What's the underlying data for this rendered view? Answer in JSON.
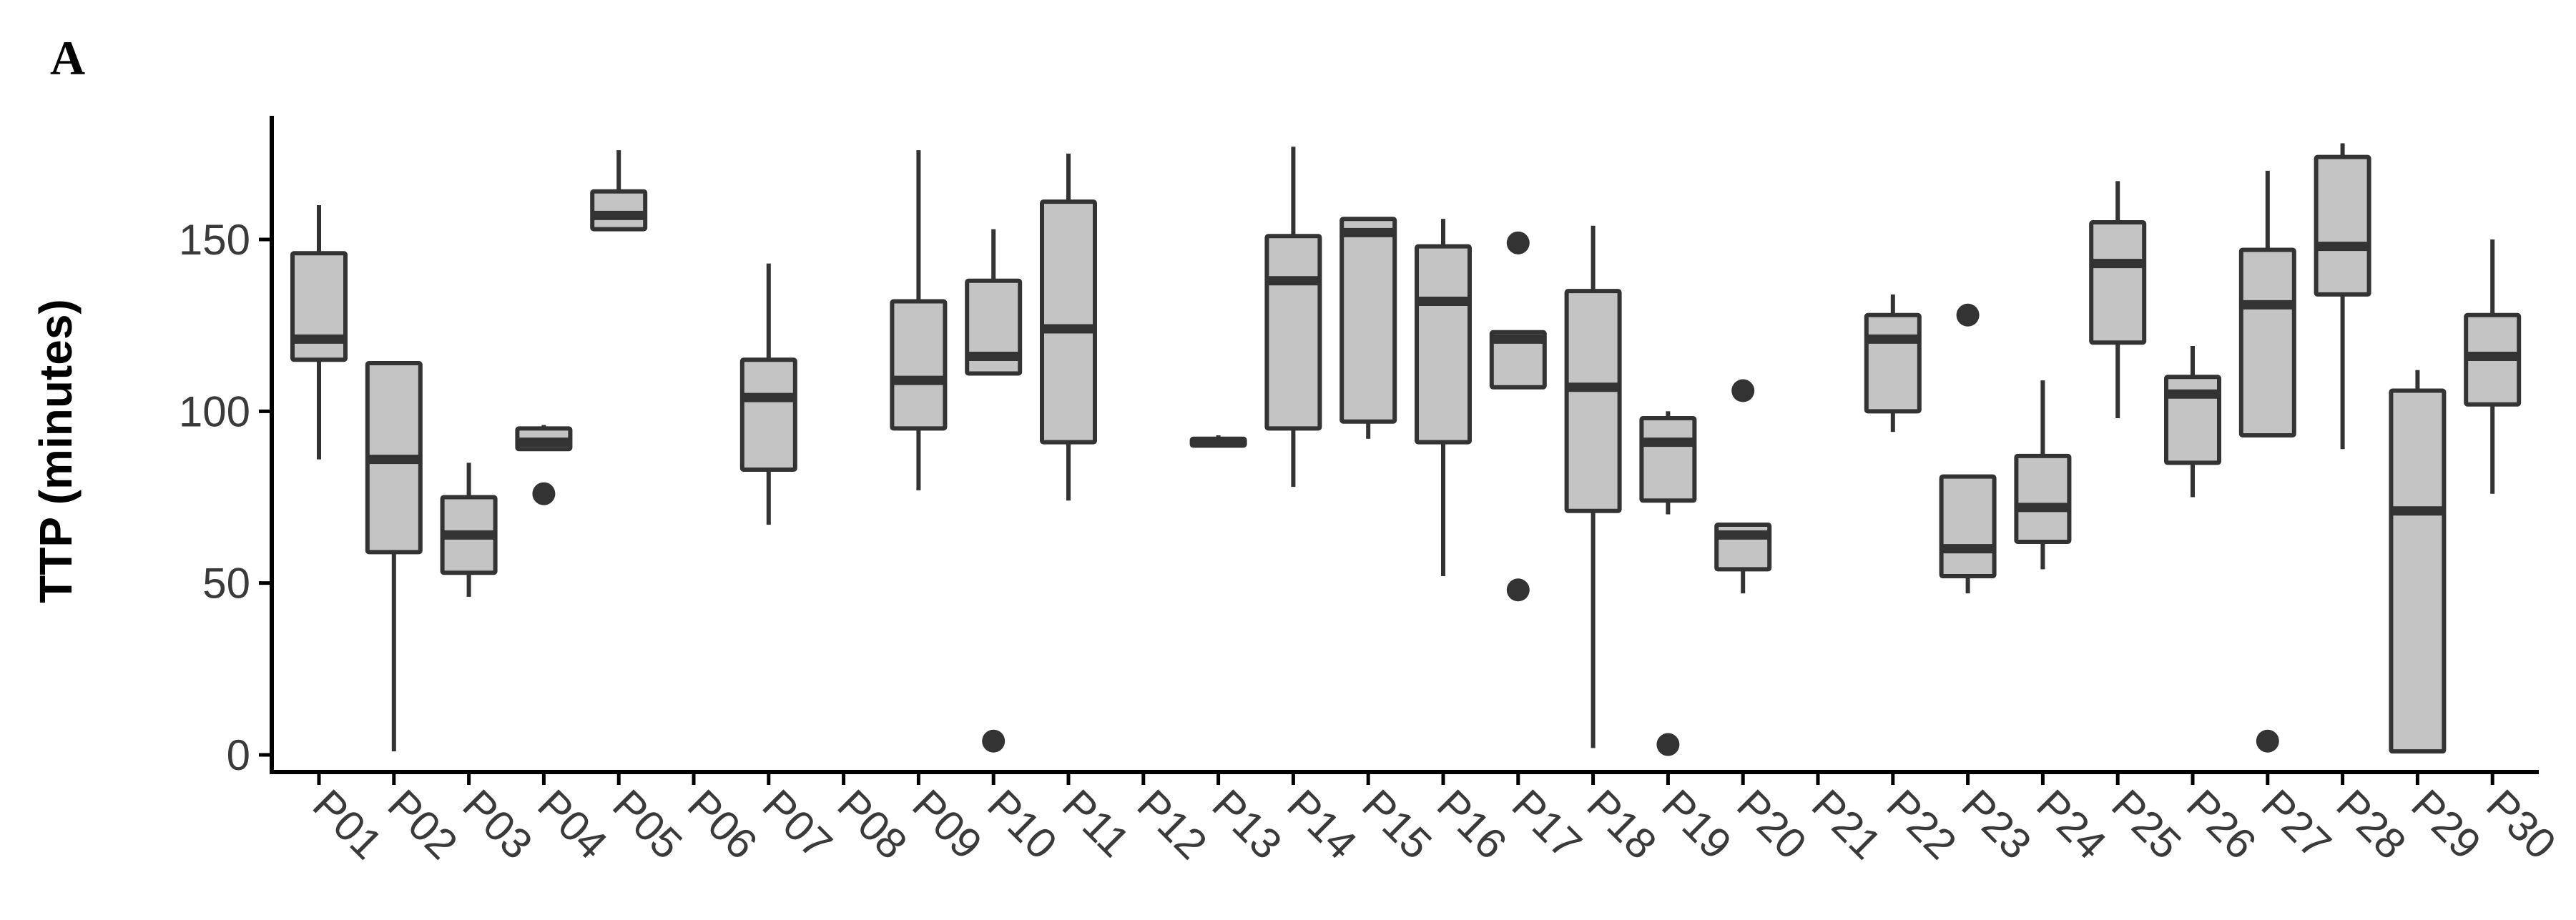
{
  "panel_label": "A",
  "chart_data": {
    "type": "box",
    "title": "",
    "xlabel": "",
    "ylabel": "TTP (minutes)",
    "ylim": [
      -5,
      186
    ],
    "yticks": [
      0,
      50,
      100,
      150
    ],
    "grid": false,
    "colors": {
      "box_fill": "#c4c4c4",
      "line": "#333333",
      "axis": "#000000"
    },
    "categories": [
      "P01",
      "P02",
      "P03",
      "P04",
      "P05",
      "P06",
      "P07",
      "P08",
      "P09",
      "P10",
      "P11",
      "P12",
      "P13",
      "P14",
      "P15",
      "P16",
      "P17",
      "P18",
      "P19",
      "P20",
      "P21",
      "P22",
      "P23",
      "P24",
      "P25",
      "P26",
      "P27",
      "P28",
      "P29",
      "P30"
    ],
    "boxes": [
      {
        "category": "P01",
        "whisker_low": 86,
        "q1": 115,
        "median": 121,
        "q3": 146,
        "whisker_high": 160,
        "outliers": []
      },
      {
        "category": "P02",
        "whisker_low": 1,
        "q1": 59,
        "median": 86,
        "q3": 114,
        "whisker_high": 114,
        "outliers": []
      },
      {
        "category": "P03",
        "whisker_low": 46,
        "q1": 53,
        "median": 64,
        "q3": 75,
        "whisker_high": 85,
        "outliers": []
      },
      {
        "category": "P04",
        "whisker_low": 89,
        "q1": 89,
        "median": 91,
        "q3": 95,
        "whisker_high": 96,
        "outliers": [
          76
        ]
      },
      {
        "category": "P05",
        "whisker_low": 153,
        "q1": 153,
        "median": 157,
        "q3": 164,
        "whisker_high": 176,
        "outliers": []
      },
      {
        "category": "P06",
        "whisker_low": null,
        "q1": null,
        "median": null,
        "q3": null,
        "whisker_high": null,
        "outliers": []
      },
      {
        "category": "P07",
        "whisker_low": 67,
        "q1": 83,
        "median": 104,
        "q3": 115,
        "whisker_high": 143,
        "outliers": []
      },
      {
        "category": "P08",
        "whisker_low": null,
        "q1": null,
        "median": null,
        "q3": null,
        "whisker_high": null,
        "outliers": []
      },
      {
        "category": "P09",
        "whisker_low": 77,
        "q1": 95,
        "median": 109,
        "q3": 132,
        "whisker_high": 176,
        "outliers": []
      },
      {
        "category": "P10",
        "whisker_low": 111,
        "q1": 111,
        "median": 116,
        "q3": 138,
        "whisker_high": 153,
        "outliers": [
          4
        ]
      },
      {
        "category": "P11",
        "whisker_low": 74,
        "q1": 91,
        "median": 124,
        "q3": 161,
        "whisker_high": 175,
        "outliers": []
      },
      {
        "category": "P12",
        "whisker_low": null,
        "q1": null,
        "median": null,
        "q3": null,
        "whisker_high": null,
        "outliers": []
      },
      {
        "category": "P13",
        "whisker_low": 90,
        "q1": 90,
        "median": 91,
        "q3": 92,
        "whisker_high": 93,
        "outliers": []
      },
      {
        "category": "P14",
        "whisker_low": 78,
        "q1": 95,
        "median": 138,
        "q3": 151,
        "whisker_high": 177,
        "outliers": []
      },
      {
        "category": "P15",
        "whisker_low": 92,
        "q1": 97,
        "median": 152,
        "q3": 156,
        "whisker_high": 156,
        "outliers": []
      },
      {
        "category": "P16",
        "whisker_low": 52,
        "q1": 91,
        "median": 132,
        "q3": 148,
        "whisker_high": 156,
        "outliers": []
      },
      {
        "category": "P17",
        "whisker_low": 107,
        "q1": 107,
        "median": 121,
        "q3": 123,
        "whisker_high": 123,
        "outliers": [
          149,
          48
        ]
      },
      {
        "category": "P18",
        "whisker_low": 2,
        "q1": 71,
        "median": 107,
        "q3": 135,
        "whisker_high": 154,
        "outliers": []
      },
      {
        "category": "P19",
        "whisker_low": 70,
        "q1": 74,
        "median": 91,
        "q3": 98,
        "whisker_high": 100,
        "outliers": [
          3
        ]
      },
      {
        "category": "P20",
        "whisker_low": 47,
        "q1": 54,
        "median": 64,
        "q3": 67,
        "whisker_high": 67,
        "outliers": [
          106
        ]
      },
      {
        "category": "P21",
        "whisker_low": null,
        "q1": null,
        "median": null,
        "q3": null,
        "whisker_high": null,
        "outliers": []
      },
      {
        "category": "P22",
        "whisker_low": 94,
        "q1": 100,
        "median": 121,
        "q3": 128,
        "whisker_high": 134,
        "outliers": []
      },
      {
        "category": "P23",
        "whisker_low": 47,
        "q1": 52,
        "median": 60,
        "q3": 81,
        "whisker_high": 81,
        "outliers": [
          128
        ]
      },
      {
        "category": "P24",
        "whisker_low": 54,
        "q1": 62,
        "median": 72,
        "q3": 87,
        "whisker_high": 109,
        "outliers": []
      },
      {
        "category": "P25",
        "whisker_low": 98,
        "q1": 120,
        "median": 143,
        "q3": 155,
        "whisker_high": 167,
        "outliers": []
      },
      {
        "category": "P26",
        "whisker_low": 75,
        "q1": 85,
        "median": 105,
        "q3": 110,
        "whisker_high": 119,
        "outliers": []
      },
      {
        "category": "P27",
        "whisker_low": 93,
        "q1": 93,
        "median": 131,
        "q3": 147,
        "whisker_high": 170,
        "outliers": [
          4
        ]
      },
      {
        "category": "P28",
        "whisker_low": 89,
        "q1": 134,
        "median": 148,
        "q3": 174,
        "whisker_high": 178,
        "outliers": []
      },
      {
        "category": "P29",
        "whisker_low": 1,
        "q1": 1,
        "median": 71,
        "q3": 106,
        "whisker_high": 112,
        "outliers": []
      },
      {
        "category": "P30",
        "whisker_low": 76,
        "q1": 102,
        "median": 116,
        "q3": 128,
        "whisker_high": 150,
        "outliers": []
      }
    ]
  }
}
